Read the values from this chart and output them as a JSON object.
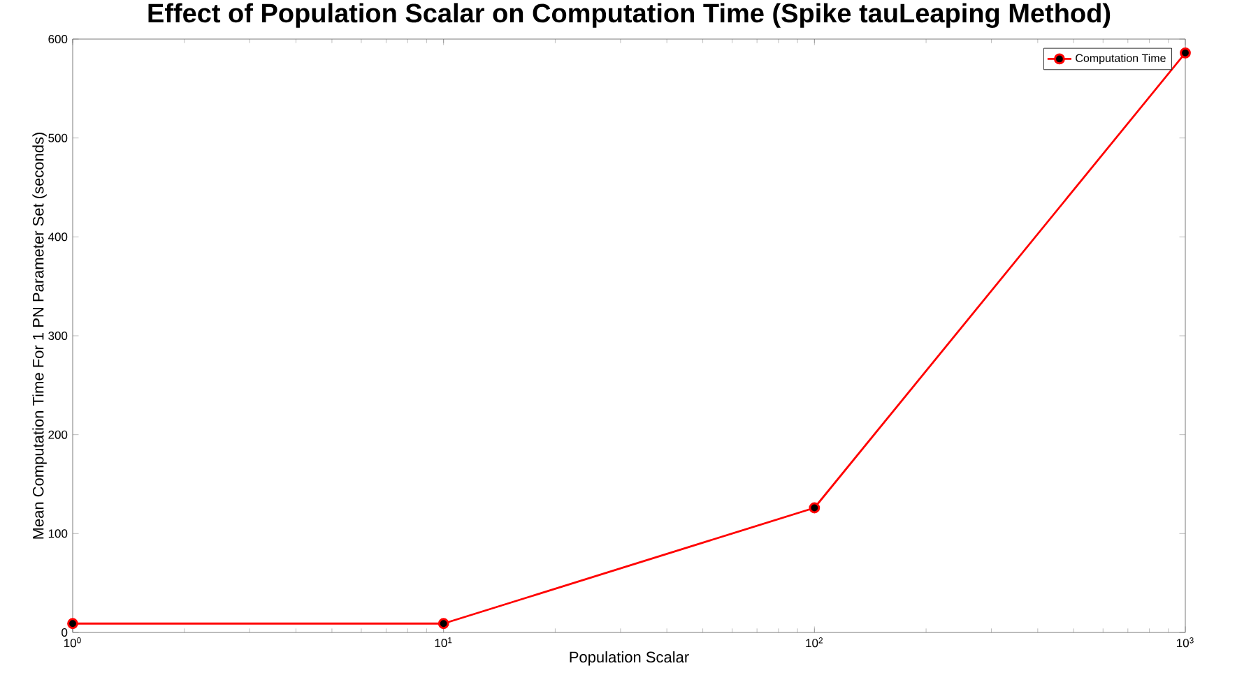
{
  "chart_data": {
    "type": "line",
    "title": "Effect of Population Scalar on Computation Time (Spike tauLeaping Method)",
    "xlabel": "Population Scalar",
    "ylabel": "Mean Computation Time For 1 PN Parameter Set (seconds)",
    "x": [
      1,
      10,
      100,
      1000
    ],
    "series": [
      {
        "name": "Computation Time",
        "color": "#ff0000",
        "values": [
          9,
          9,
          126,
          586
        ]
      }
    ],
    "log": "x",
    "xlim": [
      1,
      1000
    ],
    "xticks": [
      {
        "value": 1,
        "label": "10$^{0}$"
      },
      {
        "value": 10,
        "label": "10$^{1}$"
      },
      {
        "value": 100,
        "label": "10$^{2}$"
      },
      {
        "value": 1000,
        "label": "10$^{3}$"
      }
    ],
    "ylim": [
      0,
      600
    ],
    "yticks": [
      0,
      100,
      200,
      300,
      400,
      500,
      600
    ],
    "legend": "top right",
    "marker": "circle",
    "line_style": "solid",
    "grid": false
  }
}
